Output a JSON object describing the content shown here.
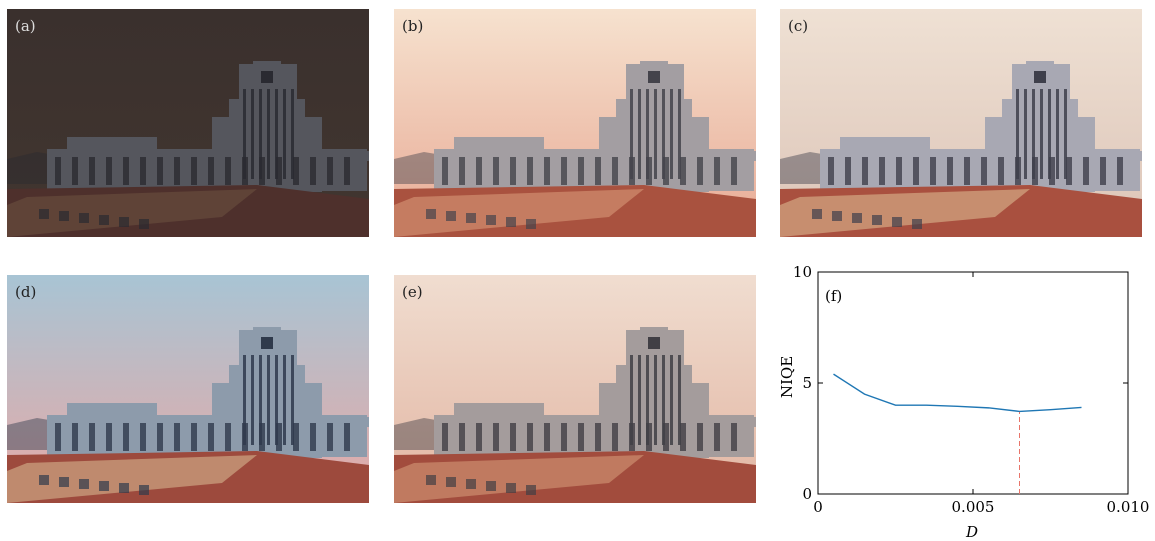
{
  "panels": [
    {
      "id": "a",
      "label": "(a)",
      "sky_top": "#3a302d",
      "sky_bottom": "#423630",
      "building": "#55565d",
      "window": "#2a2a31",
      "roof": "#4e302c",
      "roof_light": "#6b5040",
      "label_color": "#dddddd"
    },
    {
      "id": "b",
      "label": "(b)",
      "sky_top": "#f6e2cf",
      "sky_bottom": "#e8a994",
      "building": "#a39ea2",
      "window": "#44434b",
      "roof": "#a9523f",
      "roof_light": "#d99a78",
      "label_color": "#222222"
    },
    {
      "id": "c",
      "label": "(c)",
      "sky_top": "#efe1d4",
      "sky_bottom": "#dcc4b7",
      "building": "#a8a8b3",
      "window": "#3e3f4b",
      "roof": "#a9503f",
      "roof_light": "#dcb890",
      "label_color": "#222222"
    },
    {
      "id": "d",
      "label": "(d)",
      "sky_top": "#a8c4d4",
      "sky_bottom": "#e6a9a6",
      "building": "#8d9bab",
      "window": "#2f3a4c",
      "roof": "#9d4a3d",
      "roof_light": "#d5b590",
      "label_color": "#222222"
    },
    {
      "id": "e",
      "label": "(e)",
      "sky_top": "#f0ddd0",
      "sky_bottom": "#e2b5a2",
      "building": "#a49c9c",
      "window": "#413f45",
      "roof": "#a24c3d",
      "roof_light": "#d39a78",
      "label_color": "#222222"
    }
  ],
  "chart_data": {
    "type": "line",
    "panel_label": "(f)",
    "xlabel": "D",
    "ylabel": "NIQE",
    "xlim": [
      0,
      0.01
    ],
    "ylim": [
      0,
      10
    ],
    "xticks": [
      0,
      0.005,
      0.01
    ],
    "xtick_labels": [
      "0",
      "0.005",
      "0.010"
    ],
    "yticks": [
      0,
      5,
      10
    ],
    "ytick_labels": [
      "0",
      "5",
      "10"
    ],
    "series": [
      {
        "x": [
          0.0005,
          0.0015,
          0.0025,
          0.0035,
          0.0045,
          0.0055,
          0.0065,
          0.0075,
          0.0085
        ],
        "values": [
          5.4,
          4.5,
          4.0,
          4.0,
          3.95,
          3.88,
          3.72,
          3.8,
          3.9
        ],
        "color": "#1f77b4"
      }
    ],
    "marker_line": {
      "x": 0.0065,
      "y_top": 3.72,
      "color": "#e8756a",
      "style": "dashed"
    },
    "grid": false
  }
}
